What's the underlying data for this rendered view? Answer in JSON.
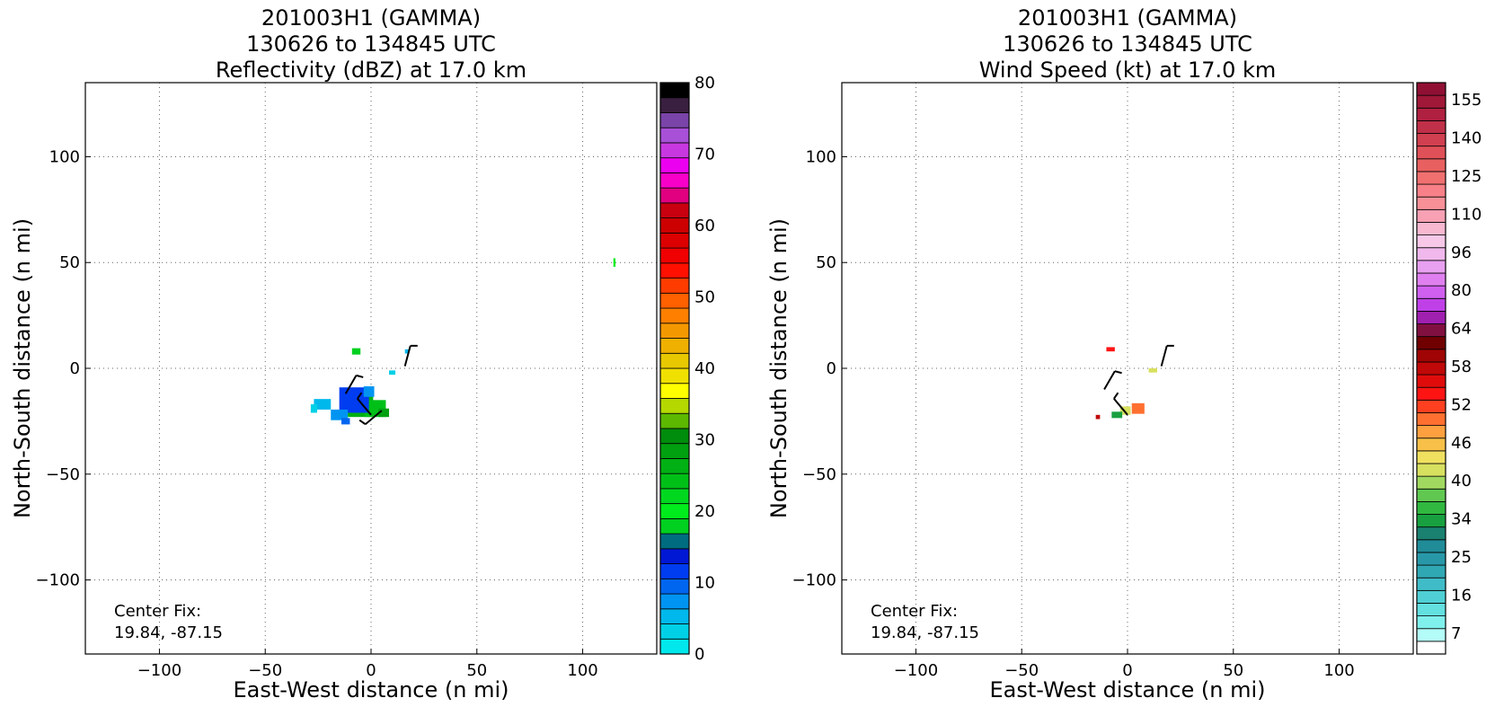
{
  "chart_data": [
    {
      "type": "heatmap",
      "title": [
        "201003H1 (GAMMA)",
        "130626 to 134845 UTC",
        "Reflectivity (dBZ) at 17.0 km"
      ],
      "xlabel": "East-West distance (n mi)",
      "ylabel": "North-South distance (n mi)",
      "xlim": [
        -135,
        135
      ],
      "ylim": [
        -135,
        135
      ],
      "xticks": [
        -100,
        -50,
        0,
        50,
        100
      ],
      "yticks": [
        -100,
        -50,
        0,
        50,
        100
      ],
      "grid": true,
      "annotation": [
        "Center Fix:",
        "19.84, -87.15"
      ],
      "colorbar": {
        "min": 0,
        "max": 80,
        "tick_values": [
          0,
          10,
          20,
          30,
          40,
          50,
          60,
          70,
          80
        ],
        "tick_labels": [
          "0",
          "10",
          "20",
          "30",
          "40",
          "50",
          "60",
          "70",
          "80"
        ],
        "colors": [
          "#00e8ec",
          "#00d0e6",
          "#00b8ec",
          "#0094f2",
          "#0066f0",
          "#003cf0",
          "#0018d4",
          "#006c80",
          "#00d020",
          "#00ec1c",
          "#00d820",
          "#00c018",
          "#00b014",
          "#00a010",
          "#008c0c",
          "#5cb800",
          "#b4d800",
          "#ffff00",
          "#f0e000",
          "#e8c800",
          "#f0b000",
          "#f49800",
          "#ff8000",
          "#ff6000",
          "#ff3c00",
          "#ff1000",
          "#f00000",
          "#dc0000",
          "#cc0000",
          "#c80010",
          "#e00080",
          "#f800c8",
          "#ec00f0",
          "#c838e0",
          "#a850d8",
          "#7a44a8",
          "#3a2040",
          "#000000"
        ]
      },
      "echo_blobs": [
        {
          "x": -5,
          "y": -18,
          "w": 12,
          "h": 10,
          "value": 12
        },
        {
          "x": 2,
          "y": -19,
          "w": 10,
          "h": 8,
          "value": 11
        },
        {
          "x": -8,
          "y": -15,
          "w": 14,
          "h": 12,
          "value": 5
        },
        {
          "x": -23,
          "y": -17,
          "w": 8,
          "h": 5,
          "value": 2
        },
        {
          "x": -15,
          "y": -22,
          "w": 8,
          "h": 5,
          "value": 3
        },
        {
          "x": -7,
          "y": 8,
          "w": 4,
          "h": 3,
          "value": 8
        },
        {
          "x": 10,
          "y": -2,
          "w": 3,
          "h": 2,
          "value": 1
        },
        {
          "x": 17,
          "y": 8,
          "w": 2,
          "h": 2,
          "value": 2
        },
        {
          "x": 115,
          "y": 50,
          "w": 1,
          "h": 4,
          "value": 9
        },
        {
          "x": -1,
          "y": -11,
          "w": 5,
          "h": 5,
          "value": 3
        },
        {
          "x": 6,
          "y": -21,
          "w": 5,
          "h": 4,
          "value": 13
        },
        {
          "x": -12,
          "y": -25,
          "w": 4,
          "h": 3,
          "value": 4
        },
        {
          "x": -27,
          "y": -19,
          "w": 3,
          "h": 4,
          "value": 1
        }
      ],
      "wind_barbs": [
        {
          "x": -12,
          "y": -12,
          "length": 10,
          "angle": 60
        },
        {
          "x": 0,
          "y": -22,
          "length": 10,
          "angle": 130
        },
        {
          "x": 5,
          "y": -20,
          "length": 10,
          "angle": 220
        },
        {
          "x": 16,
          "y": 1,
          "length": 10,
          "angle": 75
        }
      ]
    },
    {
      "type": "heatmap",
      "title": [
        "201003H1 (GAMMA)",
        "130626 to 134845 UTC",
        "Wind Speed (kt) at 17.0 km"
      ],
      "xlabel": "East-West distance (n mi)",
      "ylabel": "North-South distance (n mi)",
      "xlim": [
        -135,
        135
      ],
      "ylim": [
        -135,
        135
      ],
      "xticks": [
        -100,
        -50,
        0,
        50,
        100
      ],
      "yticks": [
        -100,
        -50,
        0,
        50,
        100
      ],
      "grid": true,
      "annotation": [
        "Center Fix:",
        "19.84, -87.15"
      ],
      "colorbar": {
        "min": 7,
        "max": 160,
        "tick_labels": [
          "7",
          "16",
          "25",
          "34",
          "40",
          "46",
          "52",
          "58",
          "64",
          "80",
          "96",
          "110",
          "125",
          "140",
          "155"
        ],
        "colors": [
          "#ffffff",
          "#b4fcf8",
          "#80f0ec",
          "#64e0e0",
          "#50d0d4",
          "#40bcc8",
          "#30a8b4",
          "#2898a8",
          "#208c98",
          "#1a8070",
          "#18a040",
          "#30b840",
          "#60c850",
          "#a0d860",
          "#d8e060",
          "#f0e060",
          "#f8c048",
          "#ffa040",
          "#ff7030",
          "#ff4020",
          "#ff1414",
          "#e00c0c",
          "#c00808",
          "#a00404",
          "#700000",
          "#801040",
          "#a020b0",
          "#c040e8",
          "#d060f0",
          "#e080f0",
          "#e8a0f0",
          "#f0b8ec",
          "#f8c8e8",
          "#f8b8d0",
          "#f8a0b4",
          "#f89098",
          "#f88088",
          "#f07070",
          "#e86060",
          "#e05058",
          "#d04050",
          "#c03048",
          "#b02040",
          "#a01838",
          "#901034"
        ]
      },
      "echo_blobs": [
        {
          "x": 5,
          "y": -19,
          "w": 6,
          "h": 5,
          "value": 18
        },
        {
          "x": -1,
          "y": -20,
          "w": 5,
          "h": 4,
          "value": 14
        },
        {
          "x": -5,
          "y": -22,
          "w": 5,
          "h": 3,
          "value": 10
        },
        {
          "x": -8,
          "y": 9,
          "w": 4,
          "h": 2,
          "value": 20
        },
        {
          "x": 12,
          "y": -1,
          "w": 4,
          "h": 2,
          "value": 14
        },
        {
          "x": -14,
          "y": -23,
          "w": 2,
          "h": 2,
          "value": 22
        }
      ],
      "wind_barbs": [
        {
          "x": -11,
          "y": -10,
          "length": 10,
          "angle": 60
        },
        {
          "x": 0,
          "y": -22,
          "length": 10,
          "angle": 130
        },
        {
          "x": 16,
          "y": 1,
          "length": 10,
          "angle": 75
        }
      ]
    }
  ]
}
